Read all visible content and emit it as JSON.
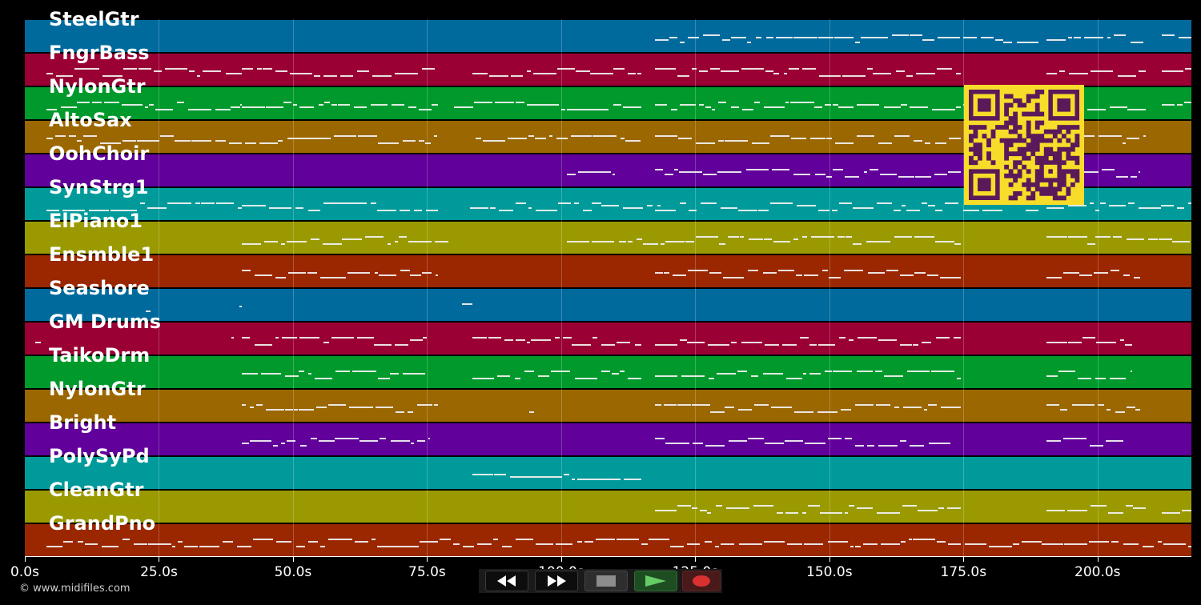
{
  "tracks": [
    {
      "name": "SteelGtr",
      "color": "#006a9d"
    },
    {
      "name": "FngrBass",
      "color": "#9a0034"
    },
    {
      "name": "NylonGtr",
      "color": "#009a2c"
    },
    {
      "name": "AltoSax",
      "color": "#9a6700"
    },
    {
      "name": "OohChoir",
      "color": "#61009a"
    },
    {
      "name": "SynStrg1",
      "color": "#009a9a"
    },
    {
      "name": "ElPiano1",
      "color": "#9a9a00"
    },
    {
      "name": "Ensmble1",
      "color": "#9a2700"
    },
    {
      "name": "Seashore",
      "color": "#006a9d"
    },
    {
      "name": "GM Drums",
      "color": "#9a0034"
    },
    {
      "name": "TaikoDrm",
      "color": "#009a2c"
    },
    {
      "name": "NylonGtr",
      "color": "#9a6700"
    },
    {
      "name": "Bright",
      "color": "#61009a"
    },
    {
      "name": "PolySyPd",
      "color": "#009a9a"
    },
    {
      "name": "CleanGtr",
      "color": "#9a9a00"
    },
    {
      "name": "GrandPno",
      "color": "#9a2700"
    }
  ],
  "time_axis": {
    "min_seconds": 0,
    "max_seconds": 217.5,
    "ticks": [
      {
        "seconds": 0,
        "label": "0.0s"
      },
      {
        "seconds": 25,
        "label": "25.0s"
      },
      {
        "seconds": 50,
        "label": "50.0s"
      },
      {
        "seconds": 75,
        "label": "75.0s"
      },
      {
        "seconds": 100,
        "label": "100.0s"
      },
      {
        "seconds": 125,
        "label": "125.0s"
      },
      {
        "seconds": 150,
        "label": "150.0s"
      },
      {
        "seconds": 175,
        "label": "175.0s"
      },
      {
        "seconds": 200,
        "label": "200.0s"
      }
    ]
  },
  "note_segments": [
    {
      "track": 0,
      "segments": [
        [
          117.5,
          158
        ],
        [
          158,
          174.5
        ],
        [
          175,
          189
        ],
        [
          190.5,
          209
        ],
        [
          212,
          217.5
        ]
      ]
    },
    {
      "track": 1,
      "segments": [
        [
          4,
          40.5
        ],
        [
          40.5,
          77
        ],
        [
          83.5,
          115
        ],
        [
          117.5,
          174.5
        ],
        [
          190.5,
          209
        ],
        [
          212,
          217.5
        ]
      ]
    },
    {
      "track": 2,
      "segments": [
        [
          4,
          40.5
        ],
        [
          40.5,
          77
        ],
        [
          80,
          115
        ],
        [
          117.5,
          174.5
        ],
        [
          175,
          189
        ],
        [
          190.5,
          209
        ],
        [
          212,
          217.5
        ]
      ]
    },
    {
      "track": 3,
      "segments": [
        [
          4,
          40.5
        ],
        [
          41,
          77
        ],
        [
          84,
          115
        ],
        [
          117.5,
          174.5
        ],
        [
          190.5,
          209
        ]
      ]
    },
    {
      "track": 4,
      "segments": [
        [
          101,
          110
        ],
        [
          117.5,
          174.5
        ],
        [
          190.5,
          208
        ]
      ]
    },
    {
      "track": 5,
      "segments": [
        [
          4,
          40.5
        ],
        [
          40.5,
          77
        ],
        [
          83,
          118.5
        ],
        [
          117.5,
          174.5
        ],
        [
          175,
          189
        ],
        [
          190.5,
          217.5
        ]
      ]
    },
    {
      "track": 6,
      "segments": [
        [
          40.5,
          79
        ],
        [
          101,
          174.5
        ],
        [
          190.5,
          217.5
        ]
      ]
    },
    {
      "track": 7,
      "segments": [
        [
          40.5,
          77
        ],
        [
          117.5,
          174.5
        ],
        [
          190.5,
          208
        ]
      ]
    },
    {
      "track": 8,
      "segments": [
        [
          22.5,
          23.5
        ],
        [
          40,
          40.5
        ],
        [
          81.5,
          83.5
        ]
      ]
    },
    {
      "track": 9,
      "segments": [
        [
          2,
          3
        ],
        [
          38.5,
          39
        ],
        [
          40.5,
          75
        ],
        [
          83.5,
          115
        ],
        [
          117.5,
          174.5
        ],
        [
          190.5,
          206.5
        ]
      ]
    },
    {
      "track": 10,
      "segments": [
        [
          40.5,
          75
        ],
        [
          83.5,
          115
        ],
        [
          117.5,
          174.5
        ],
        [
          190.5,
          206.5
        ]
      ]
    },
    {
      "track": 11,
      "segments": [
        [
          40.5,
          77
        ],
        [
          94,
          95
        ],
        [
          117.5,
          174.5
        ],
        [
          190.5,
          208
        ]
      ]
    },
    {
      "track": 12,
      "segments": [
        [
          40.5,
          75.5
        ],
        [
          117.5,
          173
        ],
        [
          190.5,
          205
        ]
      ]
    },
    {
      "track": 13,
      "segments": [
        [
          83.5,
          115
        ]
      ]
    },
    {
      "track": 14,
      "segments": [
        [
          117.5,
          174.5
        ],
        [
          190.5,
          209
        ],
        [
          212,
          217.5
        ]
      ]
    },
    {
      "track": 15,
      "segments": [
        [
          4,
          217.5
        ]
      ]
    }
  ],
  "transport": {
    "rewind_icon": "rewind-icon",
    "forward_icon": "fast-forward-icon",
    "stop_icon": "stop-icon",
    "play_icon": "play-icon",
    "record_icon": "record-icon"
  },
  "qr_code": {
    "colors": {
      "foreground": "#5a1a5a",
      "background": "#f7dc2a"
    }
  },
  "footer": {
    "copyright": "© www.midifiles.com"
  }
}
